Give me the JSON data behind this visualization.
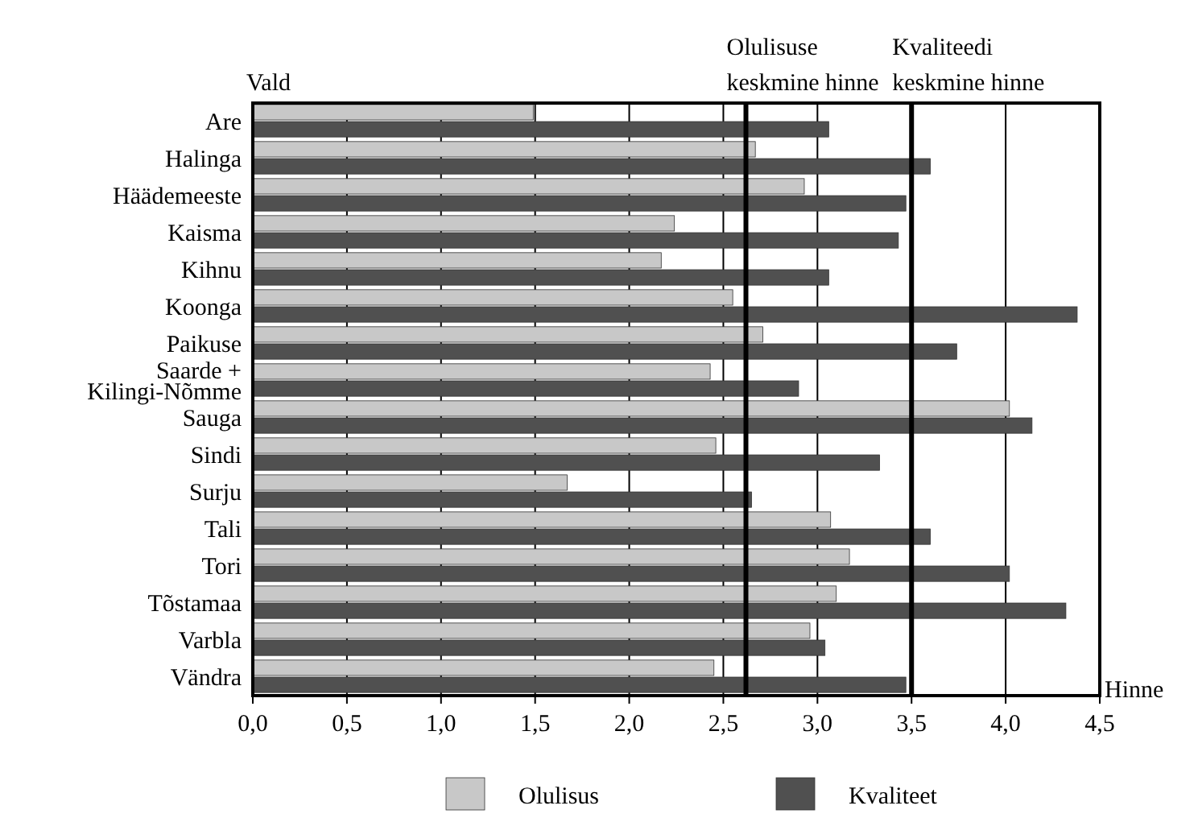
{
  "chart_data": {
    "type": "bar",
    "orientation": "horizontal",
    "ylabel": "Vald",
    "xlabel": "Hinne",
    "categories": [
      "Are",
      "Halinga",
      "Häädemeeste",
      "Kaisma",
      "Kihnu",
      "Koonga",
      "Paikuse",
      "Saarde +\nKilingi-Nõmme",
      "Sauga",
      "Sindi",
      "Surju",
      "Tali",
      "Tori",
      "Tõstamaa",
      "Varbla",
      "Vändra"
    ],
    "series": [
      {
        "name": "Olulisus",
        "color": "#c8c8c8",
        "values": [
          1.49,
          2.67,
          2.93,
          2.24,
          2.17,
          2.55,
          2.71,
          2.43,
          4.02,
          2.46,
          1.67,
          3.07,
          3.17,
          3.1,
          2.96,
          2.45
        ]
      },
      {
        "name": "Kvaliteet",
        "color": "#505050",
        "values": [
          3.06,
          3.6,
          3.47,
          3.43,
          3.06,
          4.38,
          3.74,
          2.9,
          4.14,
          3.33,
          2.65,
          3.6,
          4.02,
          4.32,
          3.04,
          3.47
        ]
      }
    ],
    "xlim": [
      0,
      4.5
    ],
    "xticks": [
      {
        "value": 0,
        "label": "0,0"
      },
      {
        "value": 0.5,
        "label": "0,5"
      },
      {
        "value": 1,
        "label": "1,0"
      },
      {
        "value": 1.5,
        "label": "1,5"
      },
      {
        "value": 2,
        "label": "2,0"
      },
      {
        "value": 2.5,
        "label": "2,5"
      },
      {
        "value": 3,
        "label": "3,0"
      },
      {
        "value": 3.5,
        "label": "3,5"
      },
      {
        "value": 4,
        "label": "4,0"
      },
      {
        "value": 4.5,
        "label": "4,5"
      }
    ],
    "ref_lines": [
      {
        "axis": "x",
        "value": 2.62,
        "label": "Olulisuse\nkeskmine hinne",
        "color": "#000000"
      },
      {
        "axis": "x",
        "value": 3.5,
        "label": "Kvaliteedi\nkeskmine hinne",
        "color": "#000000"
      }
    ],
    "grid": "x",
    "legend": "bottom"
  }
}
